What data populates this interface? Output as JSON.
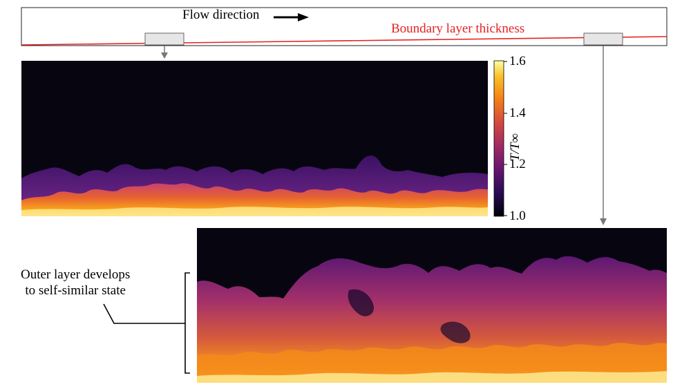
{
  "header": {
    "flow_direction": "Flow direction",
    "boundary_layer": "Boundary layer thickness"
  },
  "colorbar": {
    "title": "T/T∞",
    "ticks": [
      "1.6",
      "1.4",
      "1.2",
      "1.0"
    ],
    "tick_values": [
      1.6,
      1.4,
      1.2,
      1.0
    ],
    "range": [
      1.0,
      1.6
    ],
    "colormap": "inferno"
  },
  "annotation": {
    "line1": "Outer layer develops",
    "line2": "to self-similar state"
  },
  "colors": {
    "boundary_line": "#e32222",
    "arrow": "#777777",
    "field_background": "#07050f"
  }
}
